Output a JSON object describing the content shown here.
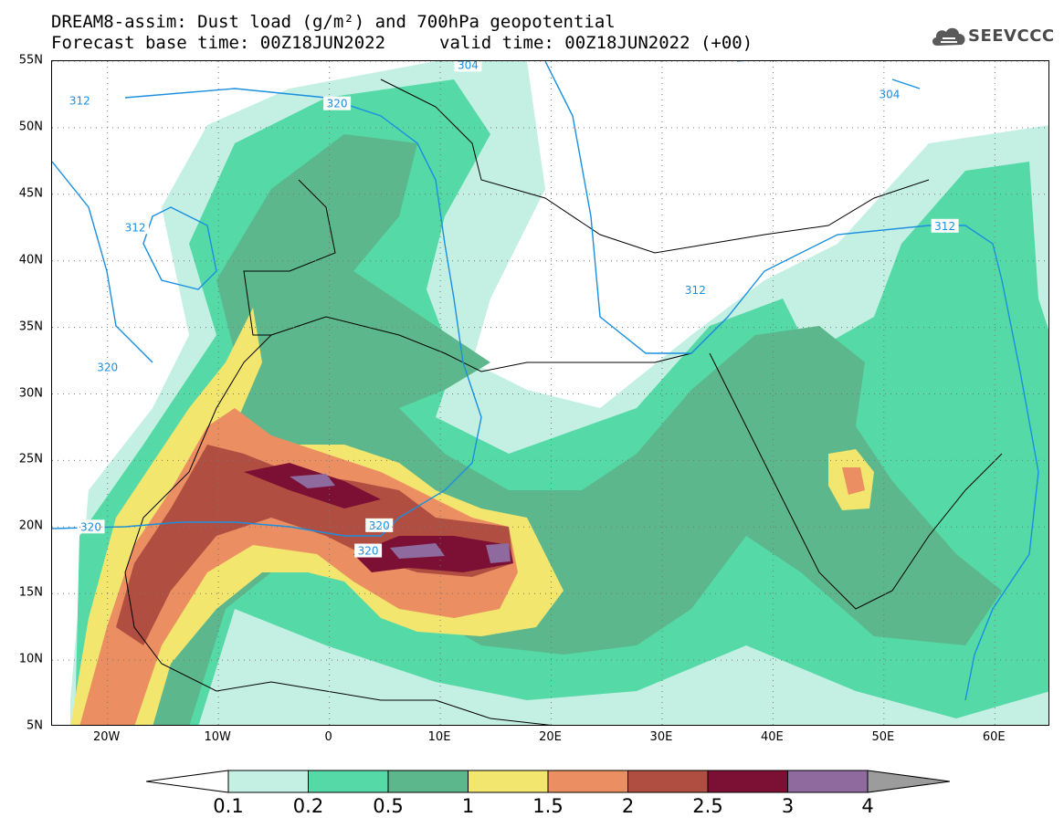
{
  "title_line1": "DREAM8-assim: Dust load (g/m²) and 700hPa geopotential",
  "title_line2_base": "Forecast base time: 00Z18JUN2022",
  "title_line2_valid": "valid time: 00Z18JUN2022 (+00)",
  "logo": {
    "text": "SEEVCCC",
    "icon": "cloud-logo-icon"
  },
  "map": {
    "lon_range": [
      -25,
      65
    ],
    "lat_range": [
      5,
      55
    ],
    "lat_ticks": [
      "5N",
      "10N",
      "15N",
      "20N",
      "25N",
      "30N",
      "35N",
      "40N",
      "45N",
      "50N",
      "55N"
    ],
    "lon_ticks": [
      "20W",
      "10W",
      "0",
      "10E",
      "20E",
      "30E",
      "40E",
      "50E",
      "60E"
    ],
    "lon_tick_values": [
      -20,
      -10,
      0,
      10,
      20,
      30,
      40,
      50,
      60
    ],
    "lat_tick_values": [
      5,
      10,
      15,
      20,
      25,
      30,
      35,
      40,
      45,
      50,
      55
    ],
    "isoline_labels": [
      {
        "text": "312",
        "lon": -22.5,
        "lat": 52
      },
      {
        "text": "320",
        "lon": 0.7,
        "lat": 51.8
      },
      {
        "text": "304",
        "lon": 12.5,
        "lat": 54.7
      },
      {
        "text": "304",
        "lon": 50.5,
        "lat": 52.5
      },
      {
        "text": "312",
        "lon": -17.5,
        "lat": 42.5
      },
      {
        "text": "320",
        "lon": -20,
        "lat": 32
      },
      {
        "text": "312",
        "lon": 33,
        "lat": 37.8
      },
      {
        "text": "312",
        "lon": 55.5,
        "lat": 42.6
      },
      {
        "text": "320",
        "lon": -21.5,
        "lat": 20
      },
      {
        "text": "320",
        "lon": 4.5,
        "lat": 20.1
      },
      {
        "text": "320",
        "lon": 3.5,
        "lat": 18.2
      }
    ]
  },
  "colorbar": {
    "colors": [
      "#ffffff",
      "#c4f0e4",
      "#54d9a7",
      "#5cb88c",
      "#f3e66e",
      "#eb8e62",
      "#b04f41",
      "#7b0f34",
      "#8e6a9e",
      "#9c9c9c"
    ],
    "labels": [
      "0.1",
      "0.2",
      "0.5",
      "1",
      "1.5",
      "2",
      "2.5",
      "3",
      "4"
    ]
  }
}
